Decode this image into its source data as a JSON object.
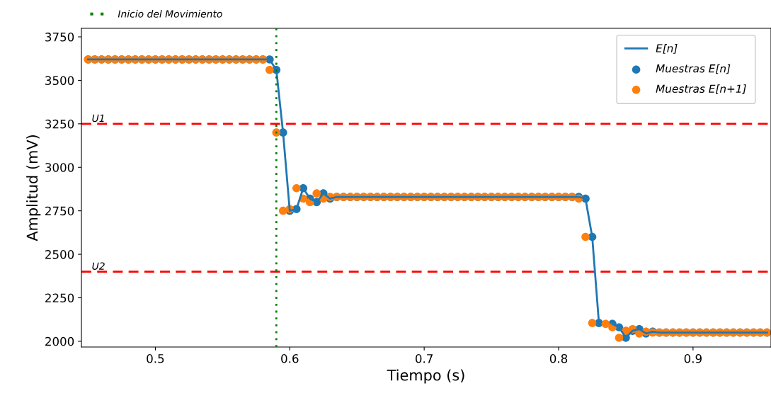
{
  "chart_data": {
    "type": "line",
    "xlabel": "Tiempo (s)",
    "ylabel": "Amplitud (mV)",
    "xlim": [
      0.445,
      0.958
    ],
    "xticks": [
      0.5,
      0.6,
      0.7,
      0.8,
      0.9
    ],
    "ylim": [
      1967,
      3799
    ],
    "yticks": [
      2000,
      2250,
      2500,
      2750,
      3000,
      3250,
      3500,
      3750
    ],
    "grid": false,
    "legend": "top right",
    "x": [
      0.45,
      0.455,
      0.46,
      0.465,
      0.47,
      0.475,
      0.48,
      0.485,
      0.49,
      0.495,
      0.5,
      0.505,
      0.51,
      0.515,
      0.52,
      0.525,
      0.53,
      0.535,
      0.54,
      0.545,
      0.55,
      0.555,
      0.56,
      0.565,
      0.57,
      0.575,
      0.58,
      0.585,
      0.59,
      0.595,
      0.6,
      0.605,
      0.61,
      0.615,
      0.62,
      0.625,
      0.63,
      0.635,
      0.64,
      0.645,
      0.65,
      0.655,
      0.66,
      0.665,
      0.67,
      0.675,
      0.68,
      0.685,
      0.69,
      0.695,
      0.7,
      0.705,
      0.71,
      0.715,
      0.72,
      0.725,
      0.73,
      0.735,
      0.74,
      0.745,
      0.75,
      0.755,
      0.76,
      0.765,
      0.77,
      0.775,
      0.78,
      0.785,
      0.79,
      0.795,
      0.8,
      0.805,
      0.81,
      0.815,
      0.82,
      0.825,
      0.83,
      0.835,
      0.84,
      0.845,
      0.85,
      0.855,
      0.86,
      0.865,
      0.87,
      0.875,
      0.88,
      0.885,
      0.89,
      0.895,
      0.9,
      0.905,
      0.91,
      0.915,
      0.92,
      0.925,
      0.93,
      0.935,
      0.94,
      0.945,
      0.95,
      0.955
    ],
    "series": [
      {
        "name": "E[n]",
        "color": "#1f77b4",
        "line_style": "solid",
        "marker": "none",
        "values": [
          3620,
          3620,
          3620,
          3620,
          3620,
          3620,
          3620,
          3620,
          3620,
          3620,
          3620,
          3620,
          3620,
          3620,
          3620,
          3620,
          3620,
          3620,
          3620,
          3620,
          3620,
          3620,
          3620,
          3620,
          3620,
          3620,
          3620,
          3620,
          3560,
          3200,
          2750,
          2760,
          2880,
          2820,
          2800,
          2850,
          2820,
          2830,
          2830,
          2830,
          2830,
          2830,
          2830,
          2830,
          2830,
          2830,
          2830,
          2830,
          2830,
          2830,
          2830,
          2830,
          2830,
          2830,
          2830,
          2830,
          2830,
          2830,
          2830,
          2830,
          2830,
          2830,
          2830,
          2830,
          2830,
          2830,
          2830,
          2830,
          2830,
          2830,
          2830,
          2830,
          2830,
          2830,
          2820,
          2600,
          2105,
          null,
          2100,
          2080,
          2020,
          2060,
          2070,
          2045,
          2055,
          2050,
          2050,
          2050,
          2050,
          2050,
          2050,
          2050,
          2050,
          2050,
          2050,
          2050,
          2050,
          2050,
          2050,
          2050,
          2050,
          2050
        ]
      },
      {
        "name": "Muestras E[n]",
        "type": "scatter",
        "color": "#1f77b4",
        "marker": "circle",
        "values": [
          3620,
          3620,
          3620,
          3620,
          3620,
          3620,
          3620,
          3620,
          3620,
          3620,
          3620,
          3620,
          3620,
          3620,
          3620,
          3620,
          3620,
          3620,
          3620,
          3620,
          3620,
          3620,
          3620,
          3620,
          3620,
          3620,
          3620,
          3620,
          3560,
          3200,
          2750,
          2760,
          2880,
          2820,
          2800,
          2850,
          2820,
          2830,
          2830,
          2830,
          2830,
          2830,
          2830,
          2830,
          2830,
          2830,
          2830,
          2830,
          2830,
          2830,
          2830,
          2830,
          2830,
          2830,
          2830,
          2830,
          2830,
          2830,
          2830,
          2830,
          2830,
          2830,
          2830,
          2830,
          2830,
          2830,
          2830,
          2830,
          2830,
          2830,
          2830,
          2830,
          2830,
          2830,
          2820,
          2600,
          2105,
          null,
          2100,
          2080,
          2020,
          2060,
          2070,
          2045,
          2055,
          2050,
          2050,
          2050,
          2050,
          2050,
          2050,
          2050,
          2050,
          2050,
          2050,
          2050,
          2050,
          2050,
          2050,
          2050,
          2050,
          2050
        ]
      },
      {
        "name": "Muestras E[n+1]",
        "type": "scatter",
        "color": "#ff7f0e",
        "marker": "circle",
        "values": [
          3620,
          3620,
          3620,
          3620,
          3620,
          3620,
          3620,
          3620,
          3620,
          3620,
          3620,
          3620,
          3620,
          3620,
          3620,
          3620,
          3620,
          3620,
          3620,
          3620,
          3620,
          3620,
          3620,
          3620,
          3620,
          3620,
          3620,
          3560,
          3200,
          2750,
          2760,
          2880,
          2820,
          2800,
          2850,
          2820,
          2830,
          2830,
          2830,
          2830,
          2830,
          2830,
          2830,
          2830,
          2830,
          2830,
          2830,
          2830,
          2830,
          2830,
          2830,
          2830,
          2830,
          2830,
          2830,
          2830,
          2830,
          2830,
          2830,
          2830,
          2830,
          2830,
          2830,
          2830,
          2830,
          2830,
          2830,
          2830,
          2830,
          2830,
          2830,
          2830,
          2830,
          2820,
          2600,
          2105,
          null,
          2100,
          2080,
          2020,
          2060,
          2070,
          2045,
          2055,
          2050,
          2050,
          2050,
          2050,
          2050,
          2050,
          2050,
          2050,
          2050,
          2050,
          2050,
          2050,
          2050,
          2050,
          2050,
          2050,
          2050,
          2050
        ]
      }
    ],
    "ref_lines": [
      {
        "axis": "x",
        "value": 0.59,
        "label": "Inicio del Movimiento",
        "color": "#008000",
        "line_style": "dotted"
      },
      {
        "axis": "y",
        "value": 3250,
        "label": "U1",
        "color": "#ff0000",
        "line_style": "dashed"
      },
      {
        "axis": "y",
        "value": 2400,
        "label": "U2",
        "color": "#ff0000",
        "line_style": "dashed"
      }
    ]
  }
}
